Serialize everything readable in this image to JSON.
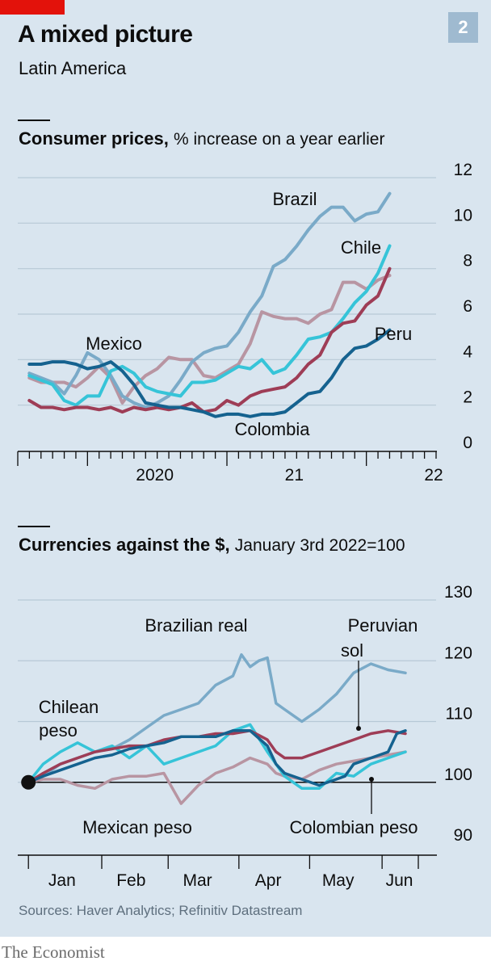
{
  "header": {
    "title": "A mixed picture",
    "subtitle": "Latin America",
    "badge": "2"
  },
  "footer": {
    "source": "Sources: Haver Analytics; Refinitiv Datastream",
    "brand": "The Economist"
  },
  "colors": {
    "brazil": "#7aaac8",
    "chile": "#36c4d8",
    "colombia": "#15628f",
    "peru": "#9e3d56",
    "mexico": "#b895a2",
    "red_tab": "#e3120b",
    "background": "#d9e5ef"
  },
  "chart_data": [
    {
      "type": "line",
      "title_bold": "Consumer prices,",
      "title_rest": "% increase on a year earlier",
      "ylim": [
        0,
        12
      ],
      "yticks": [
        "12",
        "10",
        "8",
        "6",
        "4",
        "2",
        "0"
      ],
      "ytick_values": [
        12,
        10,
        8,
        6,
        4,
        2,
        0
      ],
      "xtick_labels": [
        {
          "label": "2020",
          "date": 2020.0
        },
        {
          "label": "21",
          "date": 2021.0
        },
        {
          "label": "22",
          "date": 2022.0
        }
      ],
      "xlim": [
        2019.5,
        2022.5
      ],
      "grid": true,
      "annotations": [
        "Brazil",
        "Chile",
        "Mexico",
        "Peru",
        "Colombia"
      ],
      "series": [
        {
          "name": "Brazil",
          "key": "brazil",
          "x": [
            2019.583,
            2019.667,
            2019.75,
            2019.833,
            2019.917,
            2020.0,
            2020.083,
            2020.167,
            2020.25,
            2020.333,
            2020.417,
            2020.5,
            2020.583,
            2020.667,
            2020.75,
            2020.833,
            2020.917,
            2021.0,
            2021.083,
            2021.167,
            2021.25,
            2021.333,
            2021.417,
            2021.5,
            2021.583,
            2021.667,
            2021.75,
            2021.833,
            2021.917,
            2022.0,
            2022.083,
            2022.167
          ],
          "values": [
            3.4,
            3.2,
            3.0,
            2.5,
            3.3,
            4.3,
            4.0,
            3.3,
            2.4,
            2.1,
            1.9,
            2.1,
            2.4,
            3.1,
            3.9,
            4.3,
            4.5,
            4.6,
            5.2,
            6.1,
            6.8,
            8.1,
            8.4,
            8.99,
            9.7,
            10.3,
            10.7,
            10.7,
            10.1,
            10.4,
            10.5,
            11.3
          ]
        },
        {
          "name": "Chile",
          "key": "chile",
          "x": [
            2019.583,
            2019.667,
            2019.75,
            2019.833,
            2019.917,
            2020.0,
            2020.083,
            2020.167,
            2020.25,
            2020.333,
            2020.417,
            2020.5,
            2020.583,
            2020.667,
            2020.75,
            2020.833,
            2020.917,
            2021.0,
            2021.083,
            2021.167,
            2021.25,
            2021.333,
            2021.417,
            2021.5,
            2021.583,
            2021.667,
            2021.75,
            2021.833,
            2021.917,
            2022.0,
            2022.083,
            2022.167
          ],
          "values": [
            3.3,
            3.1,
            2.9,
            2.2,
            2.0,
            2.4,
            2.4,
            3.5,
            3.7,
            3.4,
            2.8,
            2.6,
            2.5,
            2.4,
            3.0,
            3.0,
            3.1,
            3.4,
            3.7,
            3.6,
            4.0,
            3.4,
            3.6,
            4.2,
            4.9,
            5.0,
            5.2,
            5.8,
            6.5,
            7.0,
            7.8,
            9.0
          ]
        },
        {
          "name": "Colombia",
          "key": "colombia",
          "x": [
            2019.583,
            2019.667,
            2019.75,
            2019.833,
            2019.917,
            2020.0,
            2020.083,
            2020.167,
            2020.25,
            2020.333,
            2020.417,
            2020.5,
            2020.583,
            2020.667,
            2020.75,
            2020.833,
            2020.917,
            2021.0,
            2021.083,
            2021.167,
            2021.25,
            2021.333,
            2021.417,
            2021.5,
            2021.583,
            2021.667,
            2021.75,
            2021.833,
            2021.917,
            2022.0,
            2022.083,
            2022.167
          ],
          "values": [
            3.8,
            3.8,
            3.9,
            3.9,
            3.8,
            3.6,
            3.7,
            3.9,
            3.5,
            2.9,
            2.1,
            2.0,
            1.9,
            1.9,
            1.8,
            1.7,
            1.5,
            1.6,
            1.6,
            1.5,
            1.6,
            1.6,
            1.7,
            2.1,
            2.5,
            2.6,
            3.2,
            4.0,
            4.5,
            4.6,
            4.9,
            5.3
          ]
        },
        {
          "name": "Peru",
          "key": "peru",
          "x": [
            2019.583,
            2019.667,
            2019.75,
            2019.833,
            2019.917,
            2020.0,
            2020.083,
            2020.167,
            2020.25,
            2020.333,
            2020.417,
            2020.5,
            2020.583,
            2020.667,
            2020.75,
            2020.833,
            2020.917,
            2021.0,
            2021.083,
            2021.167,
            2021.25,
            2021.333,
            2021.417,
            2021.5,
            2021.583,
            2021.667,
            2021.75,
            2021.833,
            2021.917,
            2022.0,
            2022.083,
            2022.167
          ],
          "values": [
            2.2,
            1.9,
            1.9,
            1.8,
            1.9,
            1.9,
            1.8,
            1.9,
            1.7,
            1.9,
            1.8,
            1.9,
            1.8,
            1.9,
            2.1,
            1.7,
            1.8,
            2.2,
            2.0,
            2.4,
            2.6,
            2.7,
            2.8,
            3.2,
            3.8,
            4.2,
            5.2,
            5.6,
            5.7,
            6.4,
            6.8,
            8.0
          ]
        },
        {
          "name": "Mexico",
          "key": "mexico",
          "x": [
            2019.583,
            2019.667,
            2019.75,
            2019.833,
            2019.917,
            2020.0,
            2020.083,
            2020.167,
            2020.25,
            2020.333,
            2020.417,
            2020.5,
            2020.583,
            2020.667,
            2020.75,
            2020.833,
            2020.917,
            2021.0,
            2021.083,
            2021.167,
            2021.25,
            2021.333,
            2021.417,
            2021.5,
            2021.583,
            2021.667,
            2021.75,
            2021.833,
            2021.917,
            2022.0,
            2022.083,
            2022.167
          ],
          "values": [
            3.2,
            3.0,
            3.0,
            3.0,
            2.8,
            3.2,
            3.7,
            3.2,
            2.1,
            2.8,
            3.3,
            3.6,
            4.1,
            4.0,
            4.0,
            3.3,
            3.2,
            3.5,
            3.8,
            4.7,
            6.1,
            5.9,
            5.8,
            5.8,
            5.6,
            6.0,
            6.2,
            7.4,
            7.4,
            7.1,
            7.5,
            7.7
          ]
        }
      ]
    },
    {
      "type": "line",
      "title_bold": "Currencies against the $,",
      "title_rest": "January 3rd 2022=100",
      "ylim": [
        90,
        130
      ],
      "yticks": [
        "130",
        "120",
        "110",
        "100",
        "90"
      ],
      "ytick_values": [
        130,
        120,
        110,
        100,
        90
      ],
      "xtick_labels": [
        {
          "label": "Jan",
          "date": 2022.042
        },
        {
          "label": "Feb",
          "date": 2022.122
        },
        {
          "label": "Mar",
          "date": 2022.199
        },
        {
          "label": "Apr",
          "date": 2022.281
        },
        {
          "label": "May",
          "date": 2022.362
        },
        {
          "label": "Jun",
          "date": 2022.433
        }
      ],
      "xlim": [
        2022.0,
        2022.455
      ],
      "grid": true,
      "baseline": 100,
      "annotations": [
        "Brazilian real",
        "Peruvian",
        "sol",
        "Chilean",
        "peso",
        "Mexican peso",
        "Colombian peso"
      ],
      "series": [
        {
          "name": "Brazilian real",
          "key": "brazil",
          "x": [
            2022.003,
            2022.02,
            2022.04,
            2022.06,
            2022.08,
            2022.1,
            2022.12,
            2022.14,
            2022.16,
            2022.18,
            2022.2,
            2022.22,
            2022.24,
            2022.25,
            2022.26,
            2022.27,
            2022.28,
            2022.29,
            2022.3,
            2022.32,
            2022.34,
            2022.36,
            2022.38,
            2022.4,
            2022.42,
            2022.44
          ],
          "values": [
            100,
            101,
            103,
            104,
            105,
            105.5,
            107,
            109,
            111,
            112,
            113,
            116,
            117.5,
            121,
            119,
            120,
            120.5,
            113,
            112,
            110,
            112,
            114.5,
            118,
            119.5,
            118.5,
            118
          ]
        },
        {
          "name": "Chilean peso",
          "key": "chile",
          "x": [
            2022.003,
            2022.02,
            2022.04,
            2022.06,
            2022.08,
            2022.1,
            2022.12,
            2022.14,
            2022.16,
            2022.18,
            2022.2,
            2022.22,
            2022.24,
            2022.26,
            2022.28,
            2022.29,
            2022.3,
            2022.32,
            2022.34,
            2022.36,
            2022.38,
            2022.4,
            2022.42,
            2022.44
          ],
          "values": [
            100,
            103,
            105,
            106.5,
            105,
            106,
            104,
            106,
            103,
            104,
            105,
            106,
            108.5,
            109.5,
            105,
            103,
            101,
            99,
            99,
            101.5,
            101,
            103,
            104,
            105
          ]
        },
        {
          "name": "Colombian peso",
          "key": "colombia",
          "x": [
            2022.003,
            2022.02,
            2022.04,
            2022.06,
            2022.08,
            2022.1,
            2022.12,
            2022.14,
            2022.16,
            2022.18,
            2022.2,
            2022.22,
            2022.24,
            2022.26,
            2022.28,
            2022.29,
            2022.3,
            2022.32,
            2022.34,
            2022.36,
            2022.37,
            2022.38,
            2022.4,
            2022.42,
            2022.43,
            2022.44
          ],
          "values": [
            100,
            101,
            102,
            103,
            104,
            104.5,
            105.5,
            106,
            106.5,
            107.5,
            107.5,
            107.5,
            108.5,
            108.5,
            106,
            103,
            101.5,
            100.5,
            99.5,
            100.5,
            101,
            103,
            104,
            105,
            108,
            108.5
          ]
        },
        {
          "name": "Peruvian sol",
          "key": "peru",
          "x": [
            2022.003,
            2022.02,
            2022.04,
            2022.06,
            2022.08,
            2022.1,
            2022.12,
            2022.14,
            2022.16,
            2022.18,
            2022.2,
            2022.22,
            2022.24,
            2022.26,
            2022.28,
            2022.29,
            2022.3,
            2022.32,
            2022.34,
            2022.36,
            2022.38,
            2022.4,
            2022.42,
            2022.44
          ],
          "values": [
            100,
            101.5,
            103,
            104,
            105,
            105.5,
            106,
            106,
            107,
            107.5,
            107.5,
            108,
            108,
            108.5,
            107,
            105,
            104,
            104,
            105,
            106,
            107,
            108,
            108.5,
            108
          ]
        },
        {
          "name": "Mexican peso",
          "key": "mexico",
          "x": [
            2022.003,
            2022.02,
            2022.04,
            2022.06,
            2022.08,
            2022.1,
            2022.12,
            2022.14,
            2022.16,
            2022.18,
            2022.2,
            2022.22,
            2022.24,
            2022.26,
            2022.28,
            2022.29,
            2022.3,
            2022.32,
            2022.34,
            2022.36,
            2022.38,
            2022.4,
            2022.42,
            2022.44
          ],
          "values": [
            100,
            100.5,
            100.5,
            99.5,
            99,
            100.5,
            101,
            101,
            101.5,
            96.5,
            99.5,
            101.5,
            102.5,
            104,
            103,
            101.5,
            101,
            100.5,
            102,
            103,
            103.5,
            104,
            104.5,
            105
          ]
        }
      ]
    }
  ]
}
